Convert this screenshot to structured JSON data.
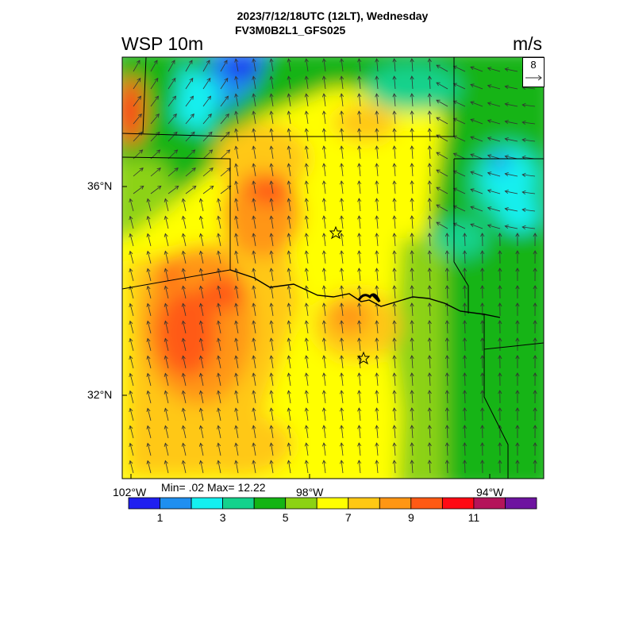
{
  "title": {
    "line1": "2023/7/12/18UTC (12LT), Wednesday",
    "line2": "FV3M0B2L1_GFS025"
  },
  "variable": {
    "name": "WSP 10m",
    "units": "m/s"
  },
  "reference_vector": {
    "magnitude": "8"
  },
  "stats": {
    "text": "Min= .02 Max= 12.22"
  },
  "axes": {
    "lat_labels": [
      "36°N",
      "32°N"
    ],
    "lon_labels": [
      "102°W",
      "98°W",
      "94°W"
    ]
  },
  "colorbar": {
    "colors": [
      "#1f1ff0",
      "#1f8ff0",
      "#14f0f0",
      "#14d28c",
      "#14b414",
      "#8cd214",
      "#ffff00",
      "#ffc814",
      "#ff9614",
      "#ff5a14",
      "#ff0a14",
      "#b4145a",
      "#6e14a0"
    ],
    "labels": [
      "1",
      "3",
      "5",
      "7",
      "9",
      "11"
    ]
  },
  "markers": {
    "count": 2
  },
  "colors": {
    "frame": "#000000",
    "vector": "#333333"
  }
}
